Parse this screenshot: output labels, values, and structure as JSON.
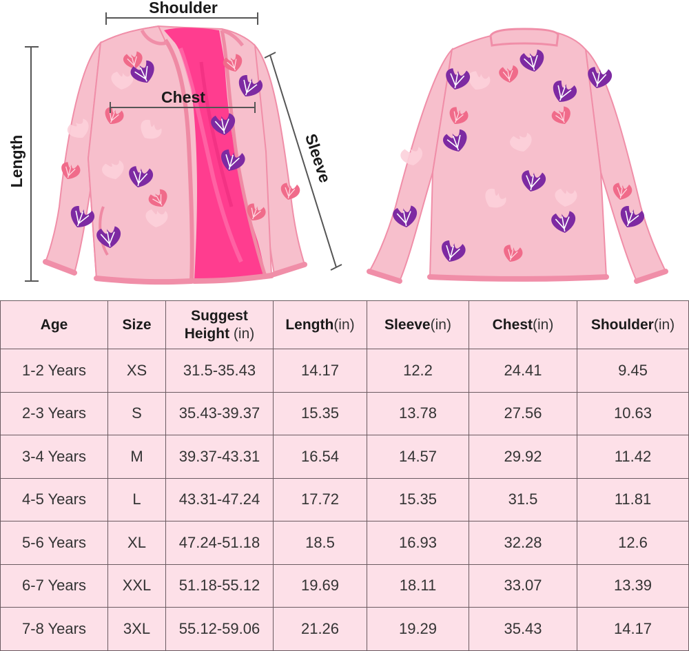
{
  "diagram": {
    "labels": {
      "shoulder": "Shoulder",
      "chest": "Chest",
      "length": "Length",
      "sleeve": "Sleeve"
    },
    "colors": {
      "jacket": "#f7bfcc",
      "lining": "#ff3d8f",
      "trim": "#f08ea8",
      "leaf_purple": "#7d2aa2",
      "leaf_pink": "#f06b8a"
    }
  },
  "table": {
    "headers": [
      {
        "label": "Age",
        "unit": ""
      },
      {
        "label": "Size",
        "unit": ""
      },
      {
        "label": "Suggest",
        "label2": "Height",
        "unit": "(in)"
      },
      {
        "label": "Length",
        "unit": "(in)"
      },
      {
        "label": "Sleeve",
        "unit": "(in)"
      },
      {
        "label": "Chest",
        "unit": "(in)"
      },
      {
        "label": "Shoulder",
        "unit": "(in)"
      }
    ],
    "rows": [
      [
        "1-2 Years",
        "XS",
        "31.5-35.43",
        "14.17",
        "12.2",
        "24.41",
        "9.45"
      ],
      [
        "2-3 Years",
        "S",
        "35.43-39.37",
        "15.35",
        "13.78",
        "27.56",
        "10.63"
      ],
      [
        "3-4 Years",
        "M",
        "39.37-43.31",
        "16.54",
        "14.57",
        "29.92",
        "11.42"
      ],
      [
        "4-5 Years",
        "L",
        "43.31-47.24",
        "17.72",
        "15.35",
        "31.5",
        "11.81"
      ],
      [
        "5-6 Years",
        "XL",
        "47.24-51.18",
        "18.5",
        "16.93",
        "32.28",
        "12.6"
      ],
      [
        "6-7 Years",
        "XXL",
        "51.18-55.12",
        "19.69",
        "18.11",
        "33.07",
        "13.39"
      ],
      [
        "7-8 Years",
        "3XL",
        "55.12-59.06",
        "21.26",
        "19.29",
        "35.43",
        "14.17"
      ]
    ]
  }
}
